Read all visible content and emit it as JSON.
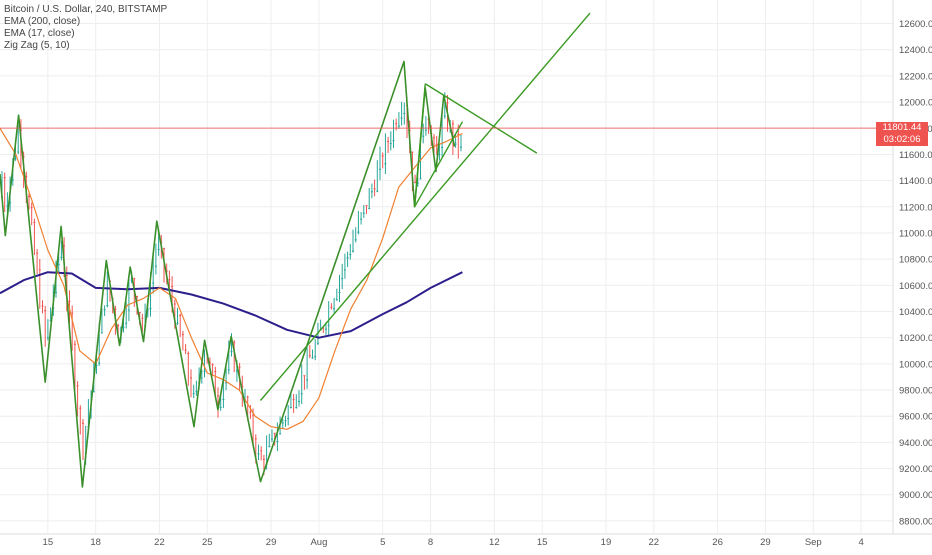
{
  "legend": {
    "symbol": "Bitcoin / U.S. Dollar, 240, BITSTAMP",
    "ema200": "EMA (200, close)",
    "ema17": "EMA (17, close)",
    "zigzag": "Zig Zag (5, 10)"
  },
  "price_tags": {
    "last_price": "11801.44",
    "countdown": "03:02:06"
  },
  "colors": {
    "up": "#26a69a",
    "down": "#ef5350",
    "ema200": "#2c1f8c",
    "ema17": "#f08030",
    "zigzag": "#3a8f2a",
    "trendline": "#3a9a22",
    "last_price": "#ef5350",
    "grid": "#eeeeee",
    "axis_text": "#555555"
  },
  "chart_data": {
    "type": "candlestick",
    "title": "",
    "y_ticks": [
      "12600.00",
      "12400.00",
      "12200.00",
      "12000.00",
      "11800.00",
      "11600.00",
      "11400.00",
      "11200.00",
      "11000.00",
      "10800.00",
      "10600.00",
      "10400.00",
      "10200.00",
      "10000.00",
      "9800.00",
      "9600.00",
      "9400.00",
      "9200.00",
      "9000.00",
      "8800.00"
    ],
    "ylim": [
      8700,
      12780
    ],
    "x_range": [
      "2019-07-12T00:00",
      "2019-09-06T00:00"
    ],
    "x_ticks": [
      {
        "label": "15",
        "date": "2019-07-15"
      },
      {
        "label": "18",
        "date": "2019-07-18"
      },
      {
        "label": "22",
        "date": "2019-07-22"
      },
      {
        "label": "25",
        "date": "2019-07-25"
      },
      {
        "label": "29",
        "date": "2019-07-29"
      },
      {
        "label": "Aug",
        "date": "2019-08-01"
      },
      {
        "label": "5",
        "date": "2019-08-05"
      },
      {
        "label": "8",
        "date": "2019-08-08"
      },
      {
        "label": "12",
        "date": "2019-08-12"
      },
      {
        "label": "15",
        "date": "2019-08-15"
      },
      {
        "label": "19",
        "date": "2019-08-19"
      },
      {
        "label": "22",
        "date": "2019-08-22"
      },
      {
        "label": "26",
        "date": "2019-08-26"
      },
      {
        "label": "29",
        "date": "2019-08-29"
      },
      {
        "label": "Sep",
        "date": "2019-09-01"
      },
      {
        "label": "4",
        "date": "2019-09-04"
      }
    ],
    "last_price": 11801.44,
    "zigzag": [
      {
        "t": "2019-07-12T00:00",
        "y": 11450
      },
      {
        "t": "2019-07-12T08:00",
        "y": 10980
      },
      {
        "t": "2019-07-13T04:00",
        "y": 11900
      },
      {
        "t": "2019-07-14T20:00",
        "y": 9860
      },
      {
        "t": "2019-07-15T20:00",
        "y": 11050
      },
      {
        "t": "2019-07-17T04:00",
        "y": 9060
      },
      {
        "t": "2019-07-18T16:00",
        "y": 10790
      },
      {
        "t": "2019-07-19T12:00",
        "y": 10140
      },
      {
        "t": "2019-07-20T04:00",
        "y": 10740
      },
      {
        "t": "2019-07-21T00:00",
        "y": 10170
      },
      {
        "t": "2019-07-21T20:00",
        "y": 11090
      },
      {
        "t": "2019-07-24T04:00",
        "y": 9520
      },
      {
        "t": "2019-07-24T20:00",
        "y": 10180
      },
      {
        "t": "2019-07-25T16:00",
        "y": 9650
      },
      {
        "t": "2019-07-26T12:00",
        "y": 10210
      },
      {
        "t": "2019-07-28T08:00",
        "y": 9100
      },
      {
        "t": "2019-08-06T08:00",
        "y": 12310
      },
      {
        "t": "2019-08-07T00:00",
        "y": 11200
      },
      {
        "t": "2019-08-07T16:00",
        "y": 12110
      },
      {
        "t": "2019-08-08T08:00",
        "y": 11470
      },
      {
        "t": "2019-08-08T20:00",
        "y": 12050
      },
      {
        "t": "2019-08-09T12:00",
        "y": 11660
      }
    ],
    "trendlines": [
      {
        "name": "support",
        "from": {
          "t": "2019-07-28T08:00",
          "y": 9720
        },
        "to": {
          "t": "2019-08-18T00:00",
          "y": 12680
        }
      },
      {
        "name": "triangle-upper",
        "from": {
          "t": "2019-08-07T16:00",
          "y": 12140
        },
        "to": {
          "t": "2019-08-14T16:00",
          "y": 11610
        }
      },
      {
        "name": "triangle-lower",
        "from": {
          "t": "2019-08-07T00:00",
          "y": 11200
        },
        "to": {
          "t": "2019-08-10T00:00",
          "y": 11850
        }
      },
      {
        "name": "triangle-left",
        "from": {
          "t": "2019-08-07T16:00",
          "y": 12140
        },
        "to": {
          "t": "2019-08-07T00:00",
          "y": 11200
        }
      }
    ],
    "ema200": [
      {
        "t": "2019-07-12T00:00",
        "y": 10540
      },
      {
        "t": "2019-07-13T12:00",
        "y": 10640
      },
      {
        "t": "2019-07-15T00:00",
        "y": 10700
      },
      {
        "t": "2019-07-16T12:00",
        "y": 10690
      },
      {
        "t": "2019-07-18T00:00",
        "y": 10580
      },
      {
        "t": "2019-07-20T00:00",
        "y": 10570
      },
      {
        "t": "2019-07-22T00:00",
        "y": 10580
      },
      {
        "t": "2019-07-24T00:00",
        "y": 10530
      },
      {
        "t": "2019-07-26T00:00",
        "y": 10460
      },
      {
        "t": "2019-07-28T00:00",
        "y": 10370
      },
      {
        "t": "2019-07-30T00:00",
        "y": 10260
      },
      {
        "t": "2019-08-01T00:00",
        "y": 10200
      },
      {
        "t": "2019-08-03T00:00",
        "y": 10250
      },
      {
        "t": "2019-08-05T00:00",
        "y": 10380
      },
      {
        "t": "2019-08-06T12:00",
        "y": 10470
      },
      {
        "t": "2019-08-08T00:00",
        "y": 10580
      },
      {
        "t": "2019-08-10T00:00",
        "y": 10700
      }
    ],
    "ema17": [
      {
        "t": "2019-07-12T00:00",
        "y": 11800
      },
      {
        "t": "2019-07-13T00:00",
        "y": 11600
      },
      {
        "t": "2019-07-14T00:00",
        "y": 11250
      },
      {
        "t": "2019-07-15T00:00",
        "y": 10870
      },
      {
        "t": "2019-07-16T00:00",
        "y": 10600
      },
      {
        "t": "2019-07-17T00:00",
        "y": 10100
      },
      {
        "t": "2019-07-18T00:00",
        "y": 10000
      },
      {
        "t": "2019-07-19T00:00",
        "y": 10270
      },
      {
        "t": "2019-07-20T00:00",
        "y": 10450
      },
      {
        "t": "2019-07-21T00:00",
        "y": 10500
      },
      {
        "t": "2019-07-22T00:00",
        "y": 10580
      },
      {
        "t": "2019-07-23T00:00",
        "y": 10500
      },
      {
        "t": "2019-07-24T00:00",
        "y": 10200
      },
      {
        "t": "2019-07-25T00:00",
        "y": 9930
      },
      {
        "t": "2019-07-26T00:00",
        "y": 9880
      },
      {
        "t": "2019-07-27T00:00",
        "y": 9800
      },
      {
        "t": "2019-07-28T00:00",
        "y": 9600
      },
      {
        "t": "2019-07-29T00:00",
        "y": 9520
      },
      {
        "t": "2019-07-30T00:00",
        "y": 9500
      },
      {
        "t": "2019-07-31T00:00",
        "y": 9560
      },
      {
        "t": "2019-08-01T00:00",
        "y": 9740
      },
      {
        "t": "2019-08-02T00:00",
        "y": 10100
      },
      {
        "t": "2019-08-03T00:00",
        "y": 10420
      },
      {
        "t": "2019-08-04T00:00",
        "y": 10640
      },
      {
        "t": "2019-08-05T00:00",
        "y": 10960
      },
      {
        "t": "2019-08-06T00:00",
        "y": 11350
      },
      {
        "t": "2019-08-07T00:00",
        "y": 11500
      },
      {
        "t": "2019-08-08T00:00",
        "y": 11650
      },
      {
        "t": "2019-08-09T00:00",
        "y": 11700
      },
      {
        "t": "2019-08-10T00:00",
        "y": 11760
      }
    ]
  }
}
